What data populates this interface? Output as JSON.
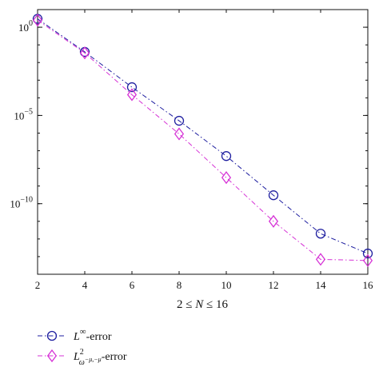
{
  "chart_data": {
    "type": "line",
    "title": "",
    "xlabel_parts": {
      "left": "2 ≤ ",
      "var": "N",
      "right": " ≤ 16"
    },
    "ylabel": "",
    "y_scale": "log",
    "x": [
      2,
      4,
      6,
      8,
      10,
      12,
      14,
      16
    ],
    "xlim": [
      2,
      16
    ],
    "ylim": [
      1e-14,
      10.0
    ],
    "x_ticks": [
      2,
      4,
      6,
      8,
      10,
      12,
      14,
      16
    ],
    "y_ticks": [
      {
        "value": 1,
        "base": "10",
        "exp": "0"
      },
      {
        "value": 1e-05,
        "base": "10",
        "exp": "−5"
      },
      {
        "value": 1e-10,
        "base": "10",
        "exp": "−10"
      }
    ],
    "grid": false,
    "legend_position": "bottom-left",
    "series": [
      {
        "key": "linf",
        "values": [
          3,
          0.04,
          0.0004,
          5e-06,
          5e-08,
          3e-10,
          2e-12,
          1.5e-13
        ],
        "color": "#1f1fa0",
        "marker": "circle",
        "line_style": "dash-dot"
      },
      {
        "key": "l2",
        "values": [
          2.5,
          0.035,
          0.00015,
          9e-07,
          3e-09,
          1e-11,
          7e-14,
          6e-14
        ],
        "color": "#d633d6",
        "marker": "diamond",
        "line_style": "dash-dot"
      }
    ],
    "legend": [
      {
        "key": "linf",
        "base": "L",
        "sup": "∞",
        "suffix": "-error"
      },
      {
        "key": "l2",
        "base": "L",
        "sup": "2",
        "sub": "ω",
        "subsup": "−μ,−μ",
        "suffix": "-error"
      }
    ]
  }
}
